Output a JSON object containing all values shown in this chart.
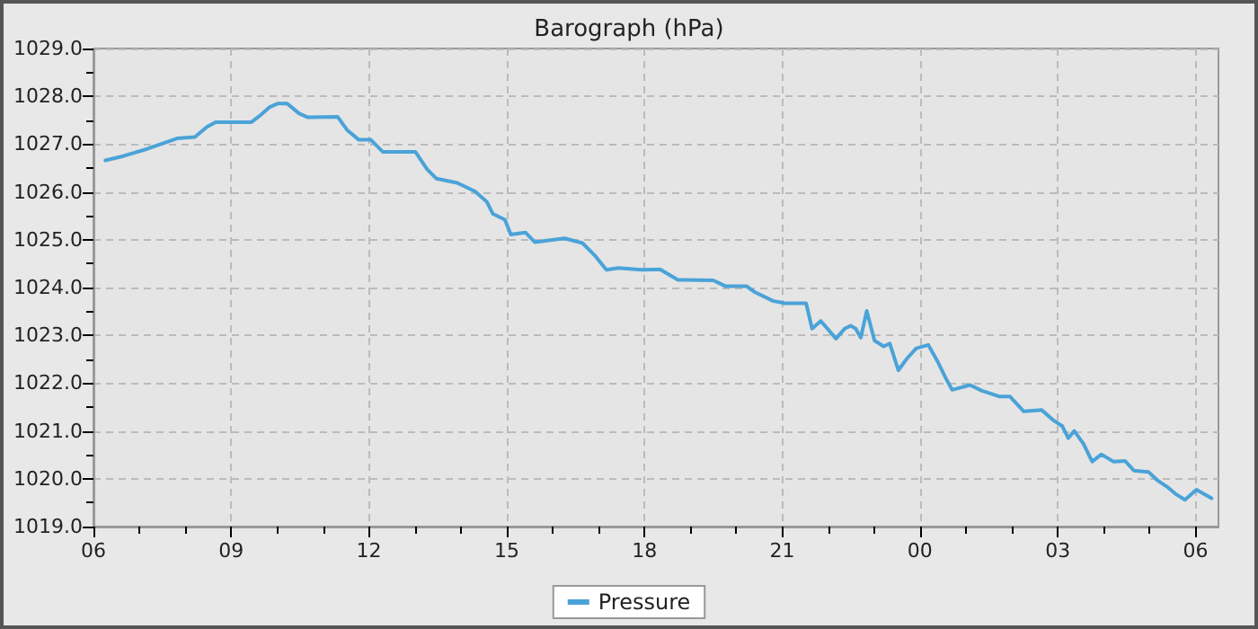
{
  "chart_data": {
    "type": "line",
    "title": "Barograph (hPa)",
    "x": [
      6.26,
      6.65,
      7.17,
      7.82,
      8.21,
      8.47,
      8.66,
      9.44,
      9.63,
      9.83,
      10.02,
      10.22,
      10.48,
      10.67,
      11.32,
      11.52,
      11.78,
      12.04,
      12.3,
      13.01,
      13.27,
      13.47,
      13.92,
      14.31,
      14.57,
      14.7,
      14.96,
      15.09,
      15.41,
      15.61,
      16.26,
      16.65,
      16.91,
      17.17,
      17.43,
      17.95,
      18.34,
      18.73,
      19.5,
      19.76,
      20.22,
      20.41,
      20.8,
      21.06,
      21.52,
      21.65,
      21.84,
      22.1,
      22.17,
      22.36,
      22.49,
      22.6,
      22.71,
      22.84,
      23.01,
      23.21,
      23.34,
      23.53,
      23.72,
      23.92,
      24.18,
      24.38,
      24.57,
      24.7,
      25.09,
      25.35,
      25.74,
      25.96,
      26.26,
      26.65,
      26.91,
      27.1,
      27.23,
      27.36,
      27.56,
      27.75,
      27.95,
      28.21,
      28.47,
      28.66,
      28.98,
      29.18,
      29.37,
      29.57,
      29.77,
      30.02,
      30.35
    ],
    "series": [
      {
        "name": "Pressure",
        "color": "#4aa3d8",
        "values": [
          1026.66,
          1026.75,
          1026.9,
          1027.12,
          1027.15,
          1027.36,
          1027.46,
          1027.46,
          1027.6,
          1027.77,
          1027.85,
          1027.85,
          1027.64,
          1027.56,
          1027.57,
          1027.3,
          1027.09,
          1027.09,
          1026.84,
          1026.84,
          1026.47,
          1026.28,
          1026.19,
          1026.01,
          1025.79,
          1025.54,
          1025.42,
          1025.11,
          1025.15,
          1024.95,
          1025.03,
          1024.93,
          1024.68,
          1024.37,
          1024.41,
          1024.37,
          1024.38,
          1024.16,
          1024.15,
          1024.03,
          1024.03,
          1023.9,
          1023.72,
          1023.67,
          1023.67,
          1023.14,
          1023.3,
          1023.01,
          1022.93,
          1023.14,
          1023.2,
          1023.14,
          1022.95,
          1023.51,
          1022.89,
          1022.77,
          1022.83,
          1022.27,
          1022.52,
          1022.73,
          1022.8,
          1022.46,
          1022.09,
          1021.86,
          1021.96,
          1021.84,
          1021.72,
          1021.72,
          1021.41,
          1021.44,
          1021.22,
          1021.1,
          1020.85,
          1021.0,
          1020.73,
          1020.36,
          1020.51,
          1020.36,
          1020.37,
          1020.17,
          1020.14,
          1019.96,
          1019.84,
          1019.68,
          1019.56,
          1019.77,
          1019.59
        ]
      }
    ],
    "xlim": [
      6,
      30.5
    ],
    "xticks": [
      {
        "value": 6,
        "label": "06"
      },
      {
        "value": 7,
        "label": null
      },
      {
        "value": 8,
        "label": null
      },
      {
        "value": 9,
        "label": "09"
      },
      {
        "value": 10,
        "label": null
      },
      {
        "value": 11,
        "label": null
      },
      {
        "value": 12,
        "label": "12"
      },
      {
        "value": 13,
        "label": null
      },
      {
        "value": 14,
        "label": null
      },
      {
        "value": 15,
        "label": "15"
      },
      {
        "value": 16,
        "label": null
      },
      {
        "value": 17,
        "label": null
      },
      {
        "value": 18,
        "label": "18"
      },
      {
        "value": 19,
        "label": null
      },
      {
        "value": 20,
        "label": null
      },
      {
        "value": 21,
        "label": "21"
      },
      {
        "value": 22,
        "label": null
      },
      {
        "value": 23,
        "label": null
      },
      {
        "value": 24,
        "label": "00"
      },
      {
        "value": 25,
        "label": null
      },
      {
        "value": 26,
        "label": null
      },
      {
        "value": 27,
        "label": "03"
      },
      {
        "value": 28,
        "label": null
      },
      {
        "value": 29,
        "label": null
      },
      {
        "value": 30,
        "label": "06"
      }
    ],
    "ylim": [
      1019,
      1029
    ],
    "yticks": [
      {
        "value": 1019,
        "label": "1019.0"
      },
      {
        "value": 1019.5,
        "label": null
      },
      {
        "value": 1020,
        "label": "1020.0"
      },
      {
        "value": 1020.5,
        "label": null
      },
      {
        "value": 1021,
        "label": "1021.0"
      },
      {
        "value": 1021.5,
        "label": null
      },
      {
        "value": 1022,
        "label": "1022.0"
      },
      {
        "value": 1022.5,
        "label": null
      },
      {
        "value": 1023,
        "label": "1023.0"
      },
      {
        "value": 1023.5,
        "label": null
      },
      {
        "value": 1024,
        "label": "1024.0"
      },
      {
        "value": 1024.5,
        "label": null
      },
      {
        "value": 1025,
        "label": "1025.0"
      },
      {
        "value": 1025.5,
        "label": null
      },
      {
        "value": 1026,
        "label": "1026.0"
      },
      {
        "value": 1026.5,
        "label": null
      },
      {
        "value": 1027,
        "label": "1027.0"
      },
      {
        "value": 1027.5,
        "label": null
      },
      {
        "value": 1028,
        "label": "1028.0"
      },
      {
        "value": 1028.5,
        "label": null
      },
      {
        "value": 1029,
        "label": "1029.0"
      }
    ],
    "grid": true,
    "legend": "bottom",
    "marker": "none",
    "line_style": "solid"
  }
}
